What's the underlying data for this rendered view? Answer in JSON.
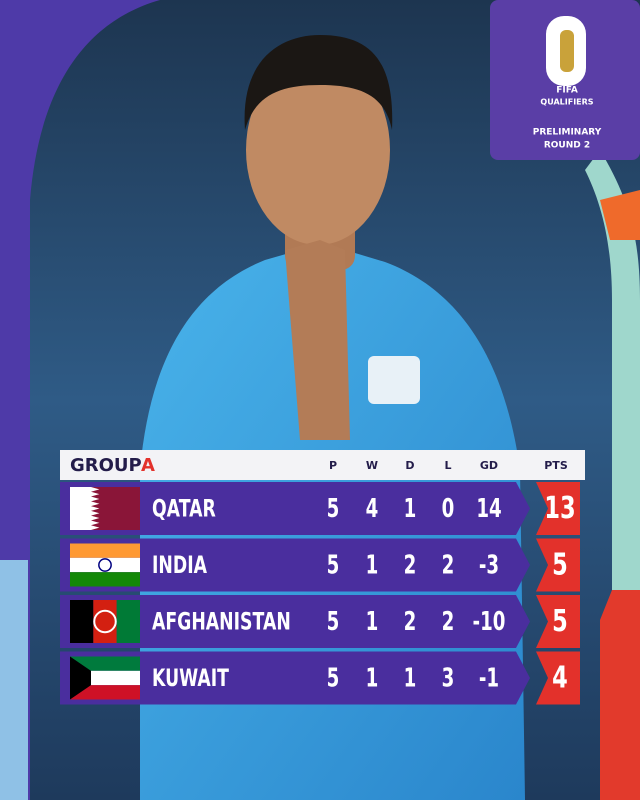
{
  "badge": {
    "brand": "FIFA",
    "subtitle": "QUALIFIERS",
    "stage_line1": "PRELIMINARY",
    "stage_line2": "ROUND 2"
  },
  "table": {
    "title": "GROUP",
    "group": "A",
    "columns": [
      "P",
      "W",
      "D",
      "L",
      "GD",
      "PTS"
    ],
    "rows": [
      {
        "team": "QATAR",
        "p": 5,
        "w": 4,
        "d": 1,
        "l": 0,
        "gd": 14,
        "pts": 13
      },
      {
        "team": "INDIA",
        "p": 5,
        "w": 1,
        "d": 2,
        "l": 2,
        "gd": -3,
        "pts": 5
      },
      {
        "team": "AFGHANISTAN",
        "p": 5,
        "w": 1,
        "d": 2,
        "l": 2,
        "gd": -10,
        "pts": 5
      },
      {
        "team": "KUWAIT",
        "p": 5,
        "w": 1,
        "d": 1,
        "l": 3,
        "gd": -1,
        "pts": 4
      }
    ]
  }
}
